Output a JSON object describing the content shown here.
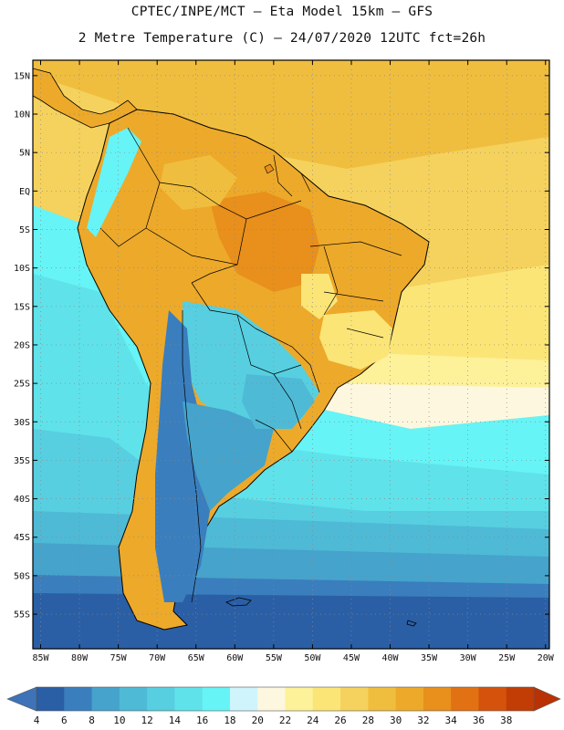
{
  "header": {
    "line1": "CPTEC/INPE/MCT –  Eta Model 15km – GFS",
    "line2": "2 Metre Temperature (C) – 24/07/2020 12UTC fct=26h"
  },
  "map": {
    "lon_range": [
      -86,
      -19.5
    ],
    "lat_range": [
      -59.5,
      17
    ],
    "lat_ticks": [
      {
        "value": 15,
        "label": "15N"
      },
      {
        "value": 10,
        "label": "10N"
      },
      {
        "value": 5,
        "label": "5N"
      },
      {
        "value": 0,
        "label": "EQ"
      },
      {
        "value": -5,
        "label": "5S"
      },
      {
        "value": -10,
        "label": "10S"
      },
      {
        "value": -15,
        "label": "15S"
      },
      {
        "value": -20,
        "label": "20S"
      },
      {
        "value": -25,
        "label": "25S"
      },
      {
        "value": -30,
        "label": "30S"
      },
      {
        "value": -35,
        "label": "35S"
      },
      {
        "value": -40,
        "label": "40S"
      },
      {
        "value": -45,
        "label": "45S"
      },
      {
        "value": -50,
        "label": "50S"
      },
      {
        "value": -55,
        "label": "55S"
      }
    ],
    "lon_ticks": [
      {
        "value": -85,
        "label": "85W"
      },
      {
        "value": -80,
        "label": "80W"
      },
      {
        "value": -75,
        "label": "75W"
      },
      {
        "value": -70,
        "label": "70W"
      },
      {
        "value": -65,
        "label": "65W"
      },
      {
        "value": -60,
        "label": "60W"
      },
      {
        "value": -55,
        "label": "55W"
      },
      {
        "value": -50,
        "label": "50W"
      },
      {
        "value": -45,
        "label": "45W"
      },
      {
        "value": -40,
        "label": "40W"
      },
      {
        "value": -35,
        "label": "35W"
      },
      {
        "value": -30,
        "label": "30W"
      },
      {
        "value": -25,
        "label": "25W"
      },
      {
        "value": -20,
        "label": "20W"
      }
    ]
  },
  "colorbar": {
    "labels": [
      "4",
      "6",
      "8",
      "10",
      "12",
      "14",
      "16",
      "18",
      "20",
      "22",
      "24",
      "26",
      "28",
      "30",
      "32",
      "34",
      "36",
      "38"
    ],
    "colors": [
      "#2a5fa6",
      "#3a7ebd",
      "#45a3cc",
      "#4ebad6",
      "#57cfe0",
      "#5fe2ea",
      "#66f4f6",
      "#cff4fb",
      "#fdf7df",
      "#fdf19a",
      "#fbe577",
      "#f5d25d",
      "#f0be3e",
      "#eda92a",
      "#e88f1c",
      "#e27114",
      "#d4520c",
      "#c23c05"
    ],
    "under_color": "#3f73b8",
    "over_color": "#ba3203"
  }
}
